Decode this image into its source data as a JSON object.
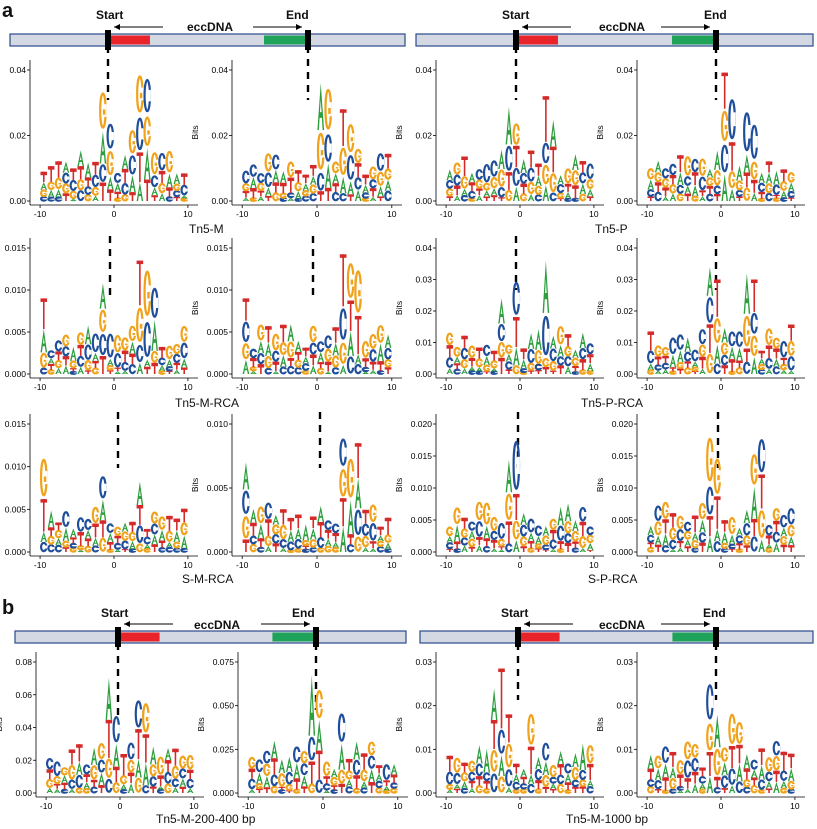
{
  "panels": {
    "a": "a",
    "b": "b"
  },
  "schematic": {
    "start": "Start",
    "end": "End",
    "eccdna": "eccDNA"
  },
  "axis": {
    "ylabel": "Bits"
  },
  "rows": [
    {
      "left_caption": "Tn5-M",
      "right_caption": "Tn5-P",
      "yticks": [
        [
          "0.00",
          "0.02",
          "0.04"
        ],
        [
          "0.00",
          "0.02",
          "0.04"
        ],
        [
          "0.00",
          "0.02",
          "0.04"
        ],
        [
          "0.00",
          "0.02",
          "0.04"
        ]
      ]
    },
    {
      "left_caption": "Tn5-M-RCA",
      "right_caption": "Tn5-P-RCA",
      "yticks": [
        [
          "0.000",
          "0.005",
          "0.010",
          "0.015"
        ],
        [
          "0.000",
          "0.005",
          "0.010",
          "0.015"
        ],
        [
          "0.00",
          "0.01",
          "0.02",
          "0.03",
          "0.04"
        ],
        [
          "0.00",
          "0.01",
          "0.02",
          "0.03",
          "0.04"
        ]
      ]
    },
    {
      "left_caption": "S-M-RCA",
      "right_caption": "S-P-RCA",
      "yticks": [
        [
          "0.000",
          "0.005",
          "0.010",
          "0.015"
        ],
        [
          "0.000",
          "0.005",
          "0.010"
        ],
        [
          "0.000",
          "0.005",
          "0.010",
          "0.015",
          "0.020"
        ],
        [
          "0.000",
          "0.005",
          "0.010",
          "0.015",
          "0.020"
        ]
      ]
    },
    {
      "left_caption": "Tn5-M-200-400 bp",
      "right_caption": "Tn5-M-1000 bp",
      "yticks": [
        [
          "0.00",
          "0.02",
          "0.04",
          "0.06",
          "0.08"
        ],
        [
          "0.000",
          "0.025",
          "0.050",
          "0.075"
        ],
        [
          "0.00",
          "0.01",
          "0.02",
          "0.03"
        ],
        [
          "0.00",
          "0.01",
          "0.02",
          "0.03"
        ]
      ]
    }
  ],
  "xticks": [
    "-10",
    "0",
    "10"
  ],
  "colors": {
    "A": "#2e9e3f",
    "C": "#1f4e9a",
    "G": "#f0a21a",
    "T": "#d42a2a",
    "red": "#e8242a",
    "green": "#1fa35a",
    "bar": "#d3d8e3",
    "barBorder": "#2b4a8b"
  }
}
